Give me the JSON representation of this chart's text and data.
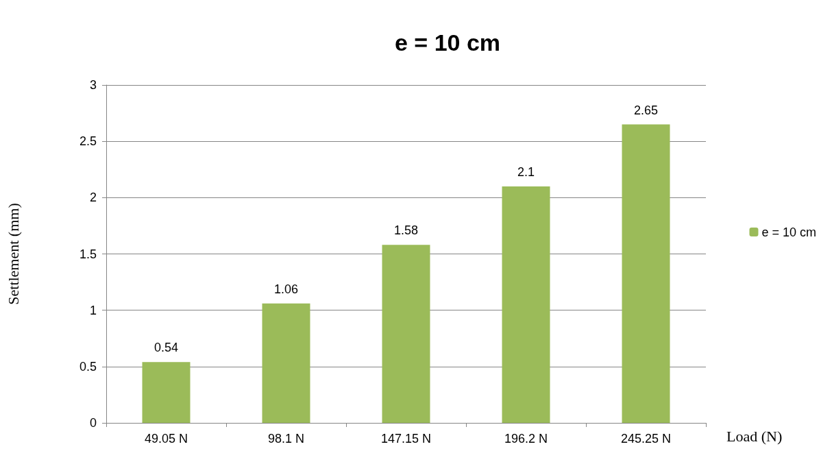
{
  "chart_data": {
    "type": "bar",
    "title": "e = 10 cm",
    "xlabel": "Load (N)",
    "ylabel": "Settlement (mm)",
    "categories": [
      "49.05 N",
      "98.1 N",
      "147.15 N",
      "196.2 N",
      "245.25 N"
    ],
    "series": [
      {
        "name": "e = 10 cm",
        "color": "#9bbb59",
        "values": [
          0.54,
          1.06,
          1.58,
          2.1,
          2.65
        ]
      }
    ],
    "ylim": [
      0,
      3
    ],
    "yticks": [
      0,
      0.5,
      1,
      1.5,
      2,
      2.5,
      3
    ],
    "grid": "y",
    "legend": "right",
    "data_labels": true
  }
}
